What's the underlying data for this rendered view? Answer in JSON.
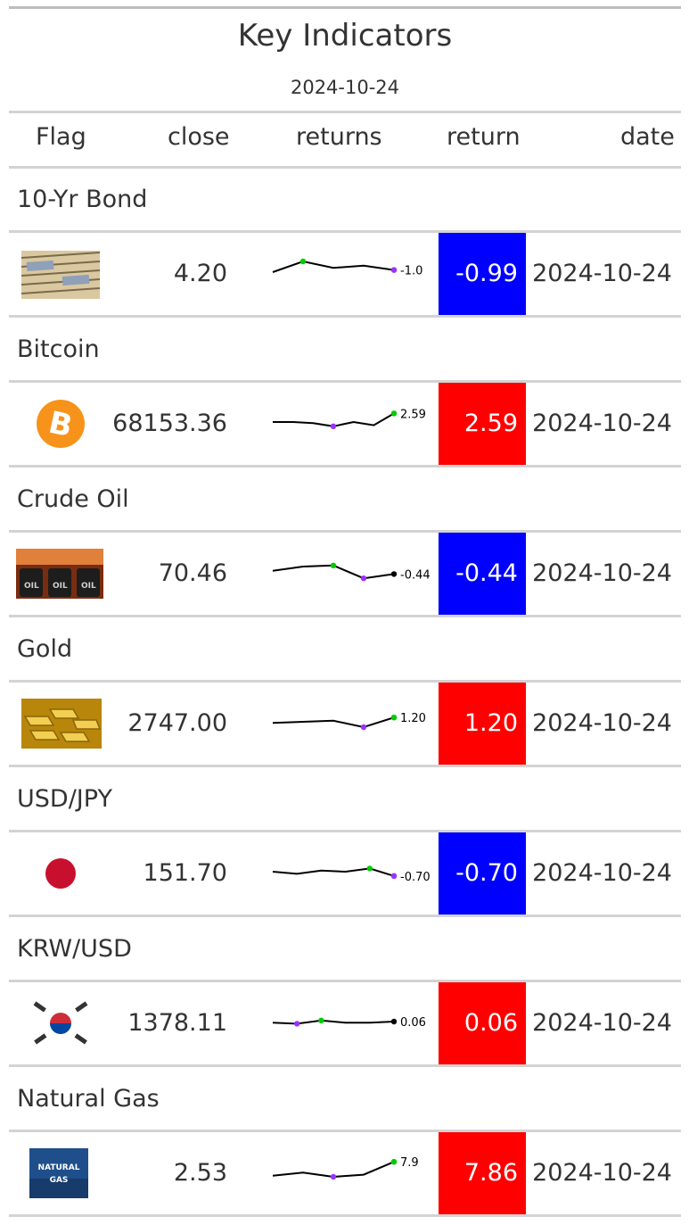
{
  "title": "Key Indicators",
  "subtitle": "2024-10-24",
  "headers": {
    "flag": "Flag",
    "close": "close",
    "returns": "returns",
    "return": "return",
    "date": "date"
  },
  "colors": {
    "negative": "#0000ff",
    "positive": "#ff0000",
    "spark_line": "#000000",
    "spark_high": "#00cc00",
    "spark_low": "#9933ff"
  },
  "rows": [
    {
      "group": "10-Yr Bond",
      "icon": "bond-certificate-icon",
      "close": "4.20",
      "return": "-0.99",
      "return_value": -0.99,
      "date": "2024-10-24",
      "spark_label": "-1.0",
      "spark": [
        0.5,
        1.0,
        0.7,
        0.8,
        0.6
      ],
      "spark_high": 1,
      "spark_low": 4
    },
    {
      "group": "Bitcoin",
      "icon": "bitcoin-icon",
      "close": "68153.36",
      "return": "2.59",
      "return_value": 2.59,
      "date": "2024-10-24",
      "spark_label": "2.59",
      "spark": [
        0.5,
        0.5,
        0.45,
        0.3,
        0.5,
        0.35,
        0.9
      ],
      "spark_high": 6,
      "spark_low": 3
    },
    {
      "group": "Crude Oil",
      "icon": "oil-barrels-icon",
      "close": "70.46",
      "return": "-0.44",
      "return_value": -0.44,
      "date": "2024-10-24",
      "spark_label": "-0.44",
      "spark": [
        0.55,
        0.75,
        0.8,
        0.2,
        0.4
      ],
      "spark_high": 2,
      "spark_low": 3
    },
    {
      "group": "Gold",
      "icon": "gold-bars-icon",
      "close": "2747.00",
      "return": "1.20",
      "return_value": 1.2,
      "date": "2024-10-24",
      "spark_label": "1.20",
      "spark": [
        0.45,
        0.5,
        0.55,
        0.25,
        0.7
      ],
      "spark_high": 4,
      "spark_low": 3
    },
    {
      "group": "USD/JPY",
      "icon": "japan-flag-icon",
      "close": "151.70",
      "return": "-0.70",
      "return_value": -0.7,
      "date": "2024-10-24",
      "spark_label": "-0.70",
      "spark": [
        0.5,
        0.4,
        0.55,
        0.5,
        0.65,
        0.3
      ],
      "spark_high": 4,
      "spark_low": 5
    },
    {
      "group": "KRW/USD",
      "icon": "korea-flag-icon",
      "close": "1378.11",
      "return": "0.06",
      "return_value": 0.06,
      "date": "2024-10-24",
      "spark_label": "0.06",
      "spark": [
        0.45,
        0.4,
        0.55,
        0.45,
        0.45,
        0.5
      ],
      "spark_high": 2,
      "spark_low": 1
    },
    {
      "group": "Natural Gas",
      "icon": "natural-gas-icon",
      "close": "2.53",
      "return": "7.86",
      "return_value": 7.86,
      "date": "2024-10-24",
      "spark_label": "7.9",
      "spark": [
        0.3,
        0.45,
        0.25,
        0.35,
        0.95
      ],
      "spark_high": 4,
      "spark_low": 2
    }
  ]
}
